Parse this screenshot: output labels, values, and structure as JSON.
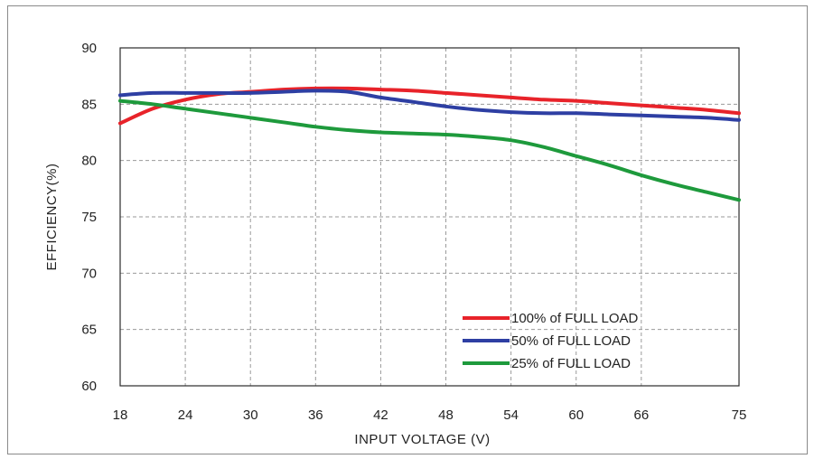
{
  "chart_data": {
    "type": "line",
    "title": "",
    "xlabel": "INPUT VOLTAGE (V)",
    "ylabel": "EFFICIENCY(%)",
    "xlim": [
      18,
      75
    ],
    "ylim": [
      60,
      90
    ],
    "xticks": [
      18,
      24,
      30,
      36,
      42,
      48,
      54,
      60,
      66,
      75
    ],
    "yticks": [
      60,
      65,
      70,
      75,
      80,
      85,
      90
    ],
    "grid": true,
    "legend_position": "bottom-right",
    "series": [
      {
        "name": "100% of FULL LOAD",
        "color": "#e8232a",
        "x": [
          18,
          21,
          24,
          27,
          30,
          33,
          36,
          39,
          42,
          45,
          48,
          51,
          54,
          57,
          60,
          63,
          66,
          69,
          72,
          75
        ],
        "y": [
          83.3,
          84.6,
          85.4,
          85.9,
          86.1,
          86.3,
          86.4,
          86.4,
          86.3,
          86.2,
          86.0,
          85.8,
          85.6,
          85.4,
          85.3,
          85.1,
          84.9,
          84.7,
          84.5,
          84.2
        ]
      },
      {
        "name": "50% of FULL LOAD",
        "color": "#2e3fa3",
        "x": [
          18,
          21,
          24,
          27,
          30,
          33,
          36,
          39,
          42,
          45,
          48,
          51,
          54,
          57,
          60,
          63,
          66,
          69,
          72,
          75
        ],
        "y": [
          85.8,
          86.0,
          86.0,
          86.0,
          86.0,
          86.1,
          86.2,
          86.1,
          85.6,
          85.2,
          84.8,
          84.5,
          84.3,
          84.2,
          84.2,
          84.1,
          84.0,
          83.9,
          83.8,
          83.6
        ]
      },
      {
        "name": "25% of FULL LOAD",
        "color": "#1e9a3c",
        "x": [
          18,
          21,
          24,
          27,
          30,
          33,
          36,
          39,
          42,
          45,
          48,
          51,
          54,
          57,
          60,
          63,
          66,
          69,
          72,
          75
        ],
        "y": [
          85.3,
          85.0,
          84.6,
          84.2,
          83.8,
          83.4,
          83.0,
          82.7,
          82.5,
          82.4,
          82.3,
          82.1,
          81.8,
          81.2,
          80.4,
          79.6,
          78.7,
          77.9,
          77.2,
          76.5
        ]
      }
    ]
  }
}
